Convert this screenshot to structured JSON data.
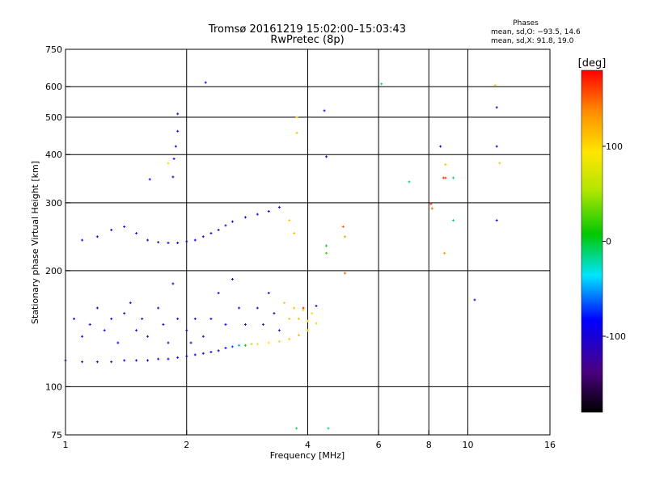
{
  "chart_data": {
    "type": "scatter",
    "title": "Tromsø 20161219 15:02:00–15:03:43",
    "subtitle": "RwPretec (8p)",
    "annotation": {
      "heading": "Phases",
      "lines": [
        "mean, sd,O: −93.5, 14.6",
        "mean, sd,X:  91.8, 19.0"
      ]
    },
    "xlabel": "Frequency [MHz]",
    "ylabel": "Stationary phase Virtual Height [km]",
    "x_scale": "log",
    "y_scale": "log",
    "xlim": [
      1,
      16
    ],
    "ylim": [
      75,
      750
    ],
    "x_ticks": [
      1,
      2,
      4,
      6,
      8,
      10,
      16
    ],
    "y_ticks": [
      75,
      100,
      200,
      300,
      400,
      500,
      600,
      750
    ],
    "x_grid": [
      2,
      4,
      6,
      8,
      10
    ],
    "y_grid": [
      100,
      200,
      300,
      400,
      500,
      600
    ],
    "colorbar": {
      "label": "[deg]",
      "min": -180,
      "max": 180,
      "ticks": [
        -100,
        0,
        100
      ]
    },
    "series": [
      {
        "points": [
          [
            1.0,
            117,
            -95
          ],
          [
            1.1,
            116,
            -95
          ],
          [
            1.2,
            116,
            -95
          ],
          [
            1.3,
            116,
            -95
          ],
          [
            1.4,
            117,
            -95
          ],
          [
            1.5,
            117,
            -95
          ],
          [
            1.6,
            117,
            -95
          ],
          [
            1.7,
            118,
            -95
          ],
          [
            1.8,
            118,
            -95
          ],
          [
            1.9,
            119,
            -95
          ],
          [
            2.0,
            120,
            -95
          ],
          [
            2.1,
            121,
            -90
          ],
          [
            2.2,
            122,
            -90
          ],
          [
            2.3,
            123,
            -90
          ],
          [
            2.4,
            124,
            -85
          ],
          [
            2.5,
            126,
            -80
          ],
          [
            2.6,
            127,
            -70
          ],
          [
            2.7,
            128,
            -50
          ],
          [
            2.8,
            128,
            10
          ],
          [
            2.9,
            129,
            60
          ],
          [
            3.0,
            129,
            90
          ],
          [
            3.2,
            130,
            95
          ],
          [
            3.4,
            131,
            100
          ],
          [
            3.6,
            133,
            110
          ],
          [
            3.8,
            136,
            115
          ],
          [
            4.0,
            140,
            110
          ],
          [
            4.2,
            146,
            105
          ],
          [
            1.05,
            150,
            -100
          ],
          [
            1.1,
            135,
            -100
          ],
          [
            1.15,
            145,
            -100
          ],
          [
            1.2,
            160,
            -100
          ],
          [
            1.25,
            140,
            -100
          ],
          [
            1.3,
            150,
            -100
          ],
          [
            1.35,
            130,
            -100
          ],
          [
            1.4,
            155,
            -100
          ],
          [
            1.45,
            165,
            -100
          ],
          [
            1.5,
            140,
            -100
          ],
          [
            1.55,
            150,
            -100
          ],
          [
            1.6,
            135,
            -100
          ],
          [
            1.7,
            160,
            -100
          ],
          [
            1.75,
            145,
            -100
          ],
          [
            1.8,
            130,
            -100
          ],
          [
            1.85,
            185,
            -100
          ],
          [
            1.9,
            150,
            -100
          ],
          [
            2.0,
            140,
            -100
          ],
          [
            2.05,
            130,
            -100
          ],
          [
            2.1,
            150,
            -100
          ],
          [
            2.2,
            135,
            -100
          ],
          [
            2.3,
            150,
            -100
          ],
          [
            2.4,
            175,
            -100
          ],
          [
            2.5,
            145,
            -100
          ],
          [
            2.6,
            190,
            -100
          ],
          [
            2.7,
            160,
            -100
          ],
          [
            2.8,
            145,
            -100
          ],
          [
            3.0,
            160,
            -110
          ],
          [
            3.1,
            145,
            -110
          ],
          [
            3.2,
            175,
            -110
          ],
          [
            3.3,
            155,
            -110
          ],
          [
            3.4,
            140,
            -110
          ],
          [
            3.5,
            165,
            110
          ],
          [
            3.6,
            150,
            110
          ],
          [
            3.7,
            160,
            115
          ],
          [
            3.8,
            150,
            110
          ],
          [
            3.9,
            158,
            105
          ],
          [
            4.0,
            148,
            105
          ],
          [
            4.1,
            155,
            100
          ],
          [
            1.1,
            240,
            -100
          ],
          [
            1.2,
            245,
            -100
          ],
          [
            1.3,
            255,
            -100
          ],
          [
            1.4,
            260,
            -100
          ],
          [
            1.5,
            250,
            -100
          ],
          [
            1.6,
            240,
            -100
          ],
          [
            1.7,
            237,
            -100
          ],
          [
            1.8,
            236,
            -100
          ],
          [
            1.9,
            236,
            -100
          ],
          [
            2.0,
            238,
            -100
          ],
          [
            2.1,
            240,
            -100
          ],
          [
            2.2,
            245,
            -100
          ],
          [
            2.3,
            250,
            -100
          ],
          [
            2.4,
            255,
            -100
          ],
          [
            2.5,
            262,
            -100
          ],
          [
            2.6,
            268,
            -100
          ],
          [
            2.8,
            275,
            -100
          ],
          [
            3.0,
            280,
            -100
          ],
          [
            3.2,
            285,
            -100
          ],
          [
            3.4,
            292,
            -100
          ],
          [
            3.6,
            270,
            110
          ],
          [
            3.7,
            250,
            115
          ],
          [
            1.85,
            350,
            -100
          ],
          [
            1.86,
            390,
            -100
          ],
          [
            1.88,
            420,
            -100
          ],
          [
            1.9,
            460,
            -100
          ],
          [
            1.9,
            510,
            -100
          ],
          [
            1.8,
            380,
            100
          ],
          [
            1.62,
            345,
            -100
          ],
          [
            2.23,
            615,
            -100
          ],
          [
            3.76,
            500,
            110
          ],
          [
            3.76,
            455,
            110
          ],
          [
            4.4,
            520,
            -100
          ],
          [
            4.45,
            395,
            -100
          ],
          [
            4.45,
            232,
            10
          ],
          [
            4.45,
            222,
            20
          ],
          [
            4.9,
            260,
            150
          ],
          [
            4.95,
            245,
            130
          ],
          [
            4.95,
            197,
            150
          ],
          [
            6.1,
            610,
            -10
          ],
          [
            7.15,
            340,
            -10
          ],
          [
            8.1,
            298,
            170
          ],
          [
            8.15,
            290,
            150
          ],
          [
            8.55,
            420,
            -100
          ],
          [
            8.7,
            348,
            165
          ],
          [
            8.8,
            377,
            110
          ],
          [
            8.8,
            348,
            160
          ],
          [
            8.75,
            222,
            135
          ],
          [
            9.2,
            348,
            -10
          ],
          [
            9.2,
            270,
            -10
          ],
          [
            10.4,
            168,
            -100
          ],
          [
            11.7,
            605,
            110
          ],
          [
            11.8,
            530,
            -100
          ],
          [
            11.8,
            420,
            -100
          ],
          [
            11.8,
            270,
            -100
          ],
          [
            12.0,
            380,
            110
          ],
          [
            4.5,
            78,
            -10
          ],
          [
            3.75,
            78,
            -10
          ],
          [
            3.9,
            160,
            170
          ],
          [
            4.2,
            162,
            -120
          ]
        ]
      }
    ]
  }
}
